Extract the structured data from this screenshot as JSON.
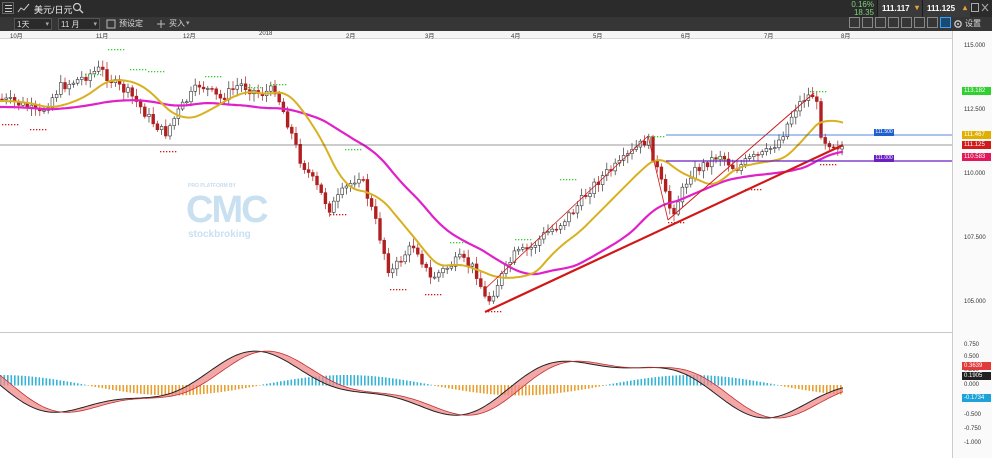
{
  "topbar": {
    "instrument": "美元/日元",
    "change_pct": "0.16%",
    "change_abs": "18.35",
    "sell_price": "111.117",
    "buy_price": "111.125"
  },
  "toolbar": {
    "timeframe": "1天",
    "period": "11 月",
    "preset_label": "预设定",
    "buy_label": "买入",
    "settings_label": "设置"
  },
  "months": [
    "10月",
    "11月",
    "12月",
    "2018",
    "2月",
    "3月",
    "4月",
    "5月",
    "6月",
    "7月",
    "8月"
  ],
  "price_axis": {
    "ticks": [
      "115.000",
      "112.500",
      "110.000",
      "107.500",
      "105.000"
    ],
    "labels": [
      {
        "text": "113.182",
        "color": "#2fd02f"
      },
      {
        "text": "111.467",
        "color": "#e0b000"
      },
      {
        "text": "111.125",
        "color": "#d11a1a"
      },
      {
        "text": "110.583",
        "color": "#e2185a"
      }
    ],
    "line_tags": [
      {
        "text": "111.500",
        "color": "#1f5fd0"
      },
      {
        "text": "111.000",
        "color": "#6a1fc0"
      }
    ]
  },
  "osc_axis": {
    "ticks": [
      "0.750",
      "0.500",
      "0.250",
      "0.000",
      "-0.500",
      "-0.750",
      "-1.000"
    ],
    "labels": [
      {
        "text": "0.3639",
        "color": "#e23a3a"
      },
      {
        "text": "0.1905",
        "color": "#222222"
      },
      {
        "text": "-0.1734",
        "color": "#1ea3d8"
      }
    ]
  },
  "watermark": {
    "line1": "PRO PLATFORM BY",
    "logo": "CMC",
    "line2": "stockbroking"
  },
  "colors": {
    "up_candle": "#ffffff",
    "down_candle": "#b02020",
    "ma_fast": "#d8b020",
    "ma_slow": "#e020c8",
    "trendline": "#d01818",
    "hist_pos": "#34b4d8",
    "hist_neg": "#e8a030"
  }
}
